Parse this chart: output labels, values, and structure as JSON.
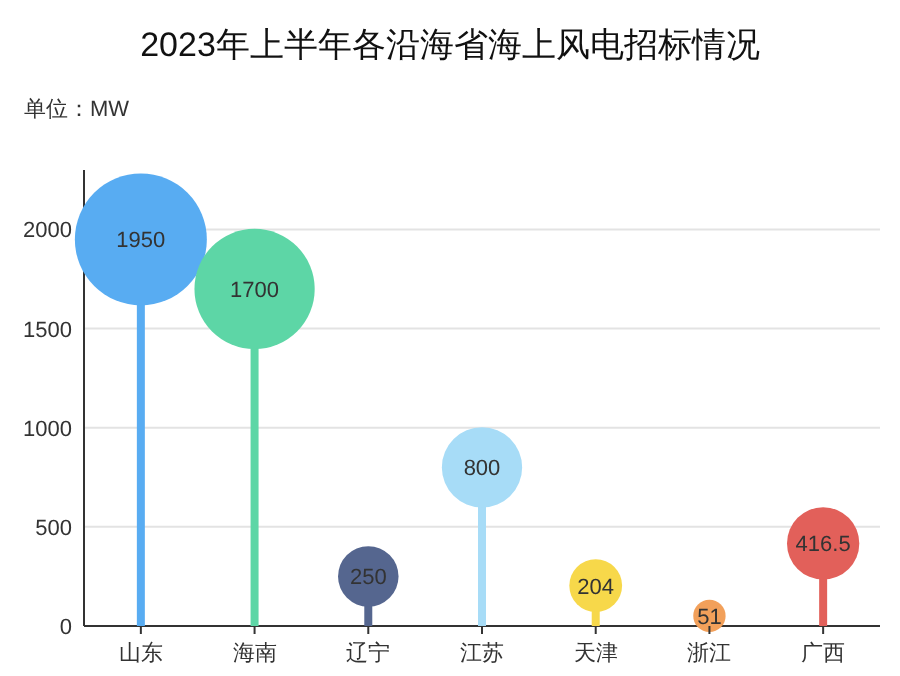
{
  "chart_data": {
    "type": "lollipop",
    "title": "2023年上半年各沿海省海上风电招标情况",
    "ylabel": "单位：MW",
    "categories": [
      "山东",
      "海南",
      "辽宁",
      "江苏",
      "天津",
      "浙江",
      "广西"
    ],
    "values": [
      1950,
      1700,
      250,
      800,
      204,
      51,
      416.5
    ],
    "sizes": [
      1,
      0.83,
      0.21,
      0.37,
      0.16,
      0.06,
      0.3
    ],
    "colors": [
      "#58acf2",
      "#5dd6a6",
      "#55668f",
      "#a7dcf7",
      "#f7d84a",
      "#f2a05a",
      "#e2605a"
    ],
    "ylim": [
      0,
      2300
    ],
    "yticks": [
      0,
      500,
      1000,
      1500,
      2000
    ],
    "grid": "y",
    "data_labels": true
  }
}
